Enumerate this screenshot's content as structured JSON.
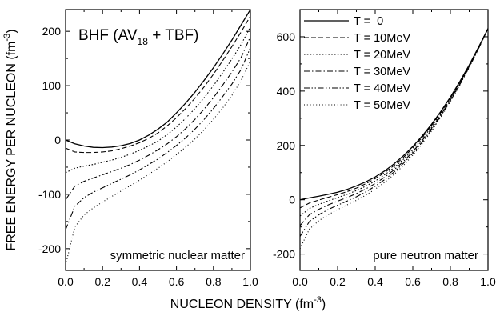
{
  "figure": {
    "ylabel": "FREE ENERGY PER NUCLEON (fm",
    "ylabel_sup": "-3",
    "ylabel_close": ")",
    "xlabel": "NUCLEON DENSITY (fm",
    "xlabel_sup": "-3",
    "xlabel_close": ")"
  },
  "chart_data": [
    {
      "type": "line",
      "panel": "left",
      "title": "BHF (AV",
      "title_sub": "18",
      "title_rest": "+ TBF)",
      "annotation": "symmetric nuclear matter",
      "xlim": [
        0.0,
        1.0
      ],
      "ylim": [
        -240,
        240
      ],
      "x_ticks": [
        0.0,
        0.2,
        0.4,
        0.6,
        0.8,
        1.0
      ],
      "x_tick_labels": [
        "0.0",
        "0.2",
        "0.4",
        "0.6",
        "0.8",
        "1.0"
      ],
      "y_ticks": [
        -200,
        -100,
        0,
        100,
        200
      ],
      "y_tick_labels": [
        "-200",
        "-100",
        "0",
        "100",
        "200"
      ],
      "series": [
        {
          "name": "T =  0",
          "dash": "solid",
          "x": [
            0.0,
            0.05,
            0.1,
            0.15,
            0.2,
            0.25,
            0.3,
            0.35,
            0.4,
            0.45,
            0.5,
            0.55,
            0.6,
            0.65,
            0.7,
            0.75,
            0.8,
            0.85,
            0.9,
            0.95,
            1.0
          ],
          "y": [
            0,
            -7,
            -11,
            -13.5,
            -14,
            -13,
            -10.5,
            -6.5,
            0,
            9,
            20,
            33,
            50,
            68,
            88,
            110,
            133,
            158,
            184,
            212,
            240
          ]
        },
        {
          "name": "T = 10MeV",
          "dash": "dashed",
          "x": [
            0.0,
            0.05,
            0.1,
            0.15,
            0.2,
            0.25,
            0.3,
            0.35,
            0.4,
            0.45,
            0.5,
            0.55,
            0.6,
            0.65,
            0.7,
            0.75,
            0.8,
            0.85,
            0.9,
            0.95,
            1.0
          ],
          "y": [
            -15,
            -22,
            -23,
            -23,
            -22,
            -20,
            -16,
            -11,
            -5,
            3,
            13,
            26,
            41,
            58,
            77,
            98,
            121,
            146,
            172,
            199,
            228
          ]
        },
        {
          "name": "T = 20MeV",
          "dash": "dotted",
          "x": [
            0.0,
            0.05,
            0.1,
            0.15,
            0.2,
            0.25,
            0.3,
            0.35,
            0.4,
            0.45,
            0.5,
            0.55,
            0.6,
            0.65,
            0.7,
            0.75,
            0.8,
            0.85,
            0.9,
            0.95,
            1.0
          ],
          "y": [
            -60,
            -52,
            -48,
            -45,
            -41,
            -37,
            -32,
            -26,
            -19,
            -11,
            -2,
            10,
            24,
            40,
            58,
            78,
            100,
            124,
            149,
            176,
            208
          ]
        },
        {
          "name": "T = 30MeV",
          "dash": "dashdot",
          "x": [
            0.0,
            0.05,
            0.1,
            0.15,
            0.2,
            0.25,
            0.3,
            0.35,
            0.4,
            0.45,
            0.5,
            0.55,
            0.6,
            0.65,
            0.7,
            0.75,
            0.8,
            0.85,
            0.9,
            0.95,
            1.0
          ],
          "y": [
            -110,
            -85,
            -76,
            -70,
            -64,
            -58,
            -52,
            -45,
            -37,
            -28,
            -18,
            -7,
            6,
            21,
            38,
            57,
            78,
            101,
            125,
            152,
            190
          ]
        },
        {
          "name": "T = 40MeV",
          "dash": "dashdotdot",
          "x": [
            0.0,
            0.05,
            0.1,
            0.15,
            0.2,
            0.25,
            0.3,
            0.35,
            0.4,
            0.45,
            0.5,
            0.55,
            0.6,
            0.65,
            0.7,
            0.75,
            0.8,
            0.85,
            0.9,
            0.95,
            1.0
          ],
          "y": [
            -165,
            -122,
            -106,
            -96,
            -88,
            -80,
            -72,
            -64,
            -55,
            -45,
            -35,
            -23,
            -10,
            4,
            20,
            38,
            58,
            80,
            103,
            130,
            170
          ]
        },
        {
          "name": "T = 50MeV",
          "dash": "finedot",
          "x": [
            0.0,
            0.05,
            0.1,
            0.15,
            0.2,
            0.25,
            0.3,
            0.35,
            0.4,
            0.45,
            0.5,
            0.55,
            0.6,
            0.65,
            0.7,
            0.75,
            0.8,
            0.85,
            0.9,
            0.95,
            1.0
          ],
          "y": [
            -230,
            -160,
            -138,
            -125,
            -114,
            -104,
            -94,
            -84,
            -74,
            -63,
            -52,
            -40,
            -27,
            -13,
            2,
            19,
            38,
            59,
            82,
            110,
            145
          ]
        }
      ]
    },
    {
      "type": "line",
      "panel": "right",
      "annotation": "pure neutron matter",
      "xlim": [
        0.0,
        1.0
      ],
      "ylim": [
        -260,
        700
      ],
      "x_ticks": [
        0.0,
        0.2,
        0.4,
        0.6,
        0.8,
        1.0
      ],
      "x_tick_labels": [
        "0.0",
        "0.2",
        "0.4",
        "0.6",
        "0.8",
        "1.0"
      ],
      "y_ticks": [
        -200,
        0,
        200,
        400,
        600
      ],
      "y_tick_labels": [
        "-200",
        "0",
        "200",
        "400",
        "600"
      ],
      "legend": "top-right",
      "series": [
        {
          "name": "T =  0",
          "dash": "solid",
          "x": [
            0.0,
            0.05,
            0.1,
            0.15,
            0.2,
            0.25,
            0.3,
            0.35,
            0.4,
            0.45,
            0.5,
            0.55,
            0.6,
            0.65,
            0.7,
            0.75,
            0.8,
            0.85,
            0.9,
            0.95,
            1.0
          ],
          "y": [
            0,
            7,
            13,
            20,
            28,
            38,
            51,
            66,
            84,
            106,
            132,
            162,
            196,
            235,
            278,
            326,
            378,
            435,
            496,
            562,
            630
          ]
        },
        {
          "name": "T = 10MeV",
          "dash": "dashed",
          "x": [
            0.0,
            0.05,
            0.1,
            0.15,
            0.2,
            0.25,
            0.3,
            0.35,
            0.4,
            0.45,
            0.5,
            0.55,
            0.6,
            0.65,
            0.7,
            0.75,
            0.8,
            0.85,
            0.9,
            0.95,
            1.0
          ],
          "y": [
            -30,
            -12,
            -1,
            9,
            19,
            30,
            43,
            59,
            78,
            100,
            126,
            156,
            191,
            230,
            274,
            322,
            375,
            432,
            494,
            560,
            630
          ]
        },
        {
          "name": "T = 20MeV",
          "dash": "dotted",
          "x": [
            0.0,
            0.05,
            0.1,
            0.15,
            0.2,
            0.25,
            0.3,
            0.35,
            0.4,
            0.45,
            0.5,
            0.55,
            0.6,
            0.65,
            0.7,
            0.75,
            0.8,
            0.85,
            0.9,
            0.95,
            1.0
          ],
          "y": [
            -60,
            -32,
            -17,
            -4,
            8,
            20,
            34,
            50,
            69,
            92,
            118,
            149,
            184,
            224,
            268,
            317,
            371,
            429,
            491,
            559,
            630
          ]
        },
        {
          "name": "T = 30MeV",
          "dash": "dashdot",
          "x": [
            0.0,
            0.05,
            0.1,
            0.15,
            0.2,
            0.25,
            0.3,
            0.35,
            0.4,
            0.45,
            0.5,
            0.55,
            0.6,
            0.65,
            0.7,
            0.75,
            0.8,
            0.85,
            0.9,
            0.95,
            1.0
          ],
          "y": [
            -95,
            -55,
            -35,
            -19,
            -5,
            8,
            23,
            40,
            60,
            83,
            110,
            141,
            177,
            218,
            263,
            313,
            367,
            426,
            489,
            558,
            630
          ]
        },
        {
          "name": "T = 40MeV",
          "dash": "dashdotdot",
          "x": [
            0.0,
            0.05,
            0.1,
            0.15,
            0.2,
            0.25,
            0.3,
            0.35,
            0.4,
            0.45,
            0.5,
            0.55,
            0.6,
            0.65,
            0.7,
            0.75,
            0.8,
            0.85,
            0.9,
            0.95,
            1.0
          ],
          "y": [
            -135,
            -80,
            -55,
            -36,
            -20,
            -5,
            11,
            29,
            50,
            74,
            102,
            134,
            171,
            212,
            258,
            309,
            364,
            424,
            488,
            557,
            630
          ]
        },
        {
          "name": "T = 50MeV",
          "dash": "finedot",
          "x": [
            0.0,
            0.05,
            0.1,
            0.15,
            0.2,
            0.25,
            0.3,
            0.35,
            0.4,
            0.45,
            0.5,
            0.55,
            0.6,
            0.65,
            0.7,
            0.75,
            0.8,
            0.85,
            0.9,
            0.95,
            1.0
          ],
          "y": [
            -180,
            -108,
            -77,
            -55,
            -36,
            -19,
            -2,
            17,
            39,
            64,
            93,
            126,
            164,
            206,
            253,
            305,
            361,
            422,
            487,
            556,
            630
          ]
        }
      ]
    }
  ]
}
